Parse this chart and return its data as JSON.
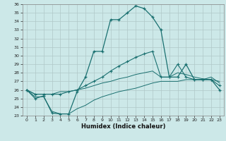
{
  "xlabel": "Humidex (Indice chaleur)",
  "bg_color": "#cce8e8",
  "line_color": "#1a7070",
  "grid_color": "#b0c8c8",
  "ylim": [
    23,
    36
  ],
  "xlim": [
    0,
    23
  ],
  "yticks": [
    23,
    24,
    25,
    26,
    27,
    28,
    29,
    30,
    31,
    32,
    33,
    34,
    35,
    36
  ],
  "xticks": [
    0,
    1,
    2,
    3,
    4,
    5,
    6,
    7,
    8,
    9,
    10,
    11,
    12,
    13,
    14,
    15,
    16,
    17,
    18,
    19,
    20,
    21,
    22,
    23
  ],
  "curve1_x": [
    0,
    1,
    2,
    3,
    4,
    5,
    6,
    7,
    8,
    9,
    10,
    11,
    12,
    13,
    14,
    15,
    16,
    17,
    18,
    19,
    20,
    21,
    22,
    23
  ],
  "curve1_y": [
    26.0,
    25.0,
    25.3,
    23.3,
    23.2,
    23.2,
    25.8,
    27.5,
    30.5,
    30.5,
    34.2,
    34.2,
    35.0,
    35.8,
    35.5,
    34.5,
    33.0,
    27.5,
    27.5,
    29.0,
    27.2,
    27.2,
    27.2,
    26.0
  ],
  "curve2_x": [
    0,
    1,
    2,
    3,
    4,
    5,
    6,
    7,
    8,
    9,
    10,
    11,
    12,
    13,
    14,
    15,
    16,
    17,
    18,
    19,
    20,
    21,
    22,
    23
  ],
  "curve2_y": [
    26.0,
    25.5,
    25.5,
    25.5,
    25.5,
    25.8,
    26.0,
    26.5,
    27.0,
    27.5,
    28.2,
    28.8,
    29.3,
    29.8,
    30.2,
    30.5,
    27.5,
    27.5,
    29.0,
    27.5,
    27.2,
    27.2,
    27.2,
    26.5
  ],
  "curve3_x": [
    0,
    1,
    2,
    3,
    4,
    5,
    6,
    7,
    8,
    9,
    10,
    11,
    12,
    13,
    14,
    15,
    16,
    17,
    18,
    19,
    20,
    21,
    22,
    23
  ],
  "curve3_y": [
    26.0,
    25.5,
    25.5,
    25.5,
    25.8,
    25.8,
    26.0,
    26.2,
    26.5,
    26.8,
    27.0,
    27.3,
    27.5,
    27.8,
    28.0,
    28.2,
    27.5,
    27.5,
    28.0,
    27.8,
    27.5,
    27.3,
    27.2,
    27.0
  ],
  "curve4_x": [
    0,
    1,
    2,
    3,
    4,
    5,
    6,
    7,
    8,
    9,
    10,
    11,
    12,
    13,
    14,
    15,
    16,
    17,
    18,
    19,
    20,
    21,
    22,
    23
  ],
  "curve4_y": [
    26.0,
    25.2,
    25.2,
    23.5,
    23.2,
    23.2,
    23.8,
    24.2,
    24.8,
    25.2,
    25.5,
    25.8,
    26.0,
    26.2,
    26.5,
    26.8,
    27.0,
    27.0,
    27.0,
    27.2,
    27.2,
    27.2,
    27.5,
    26.8
  ]
}
